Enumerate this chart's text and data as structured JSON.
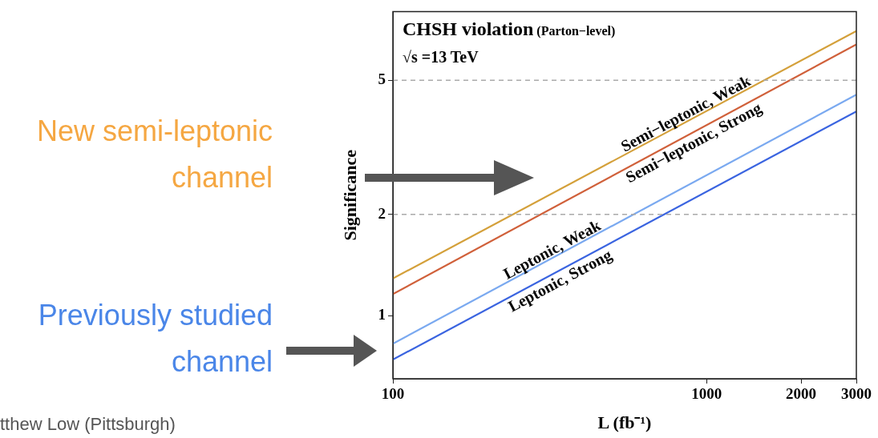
{
  "chart_data": {
    "type": "line",
    "title": "CHSH violation (Parton−level)",
    "subtitle": "√s =13 TeV",
    "xlabel": "L (fb⁻¹)",
    "ylabel": "Significance",
    "x": [
      100,
      3000
    ],
    "log": "xy",
    "xlim": [
      100,
      3000
    ],
    "ylim": [
      0.65,
      8
    ],
    "xticks": [
      100,
      1000,
      2000,
      3000
    ],
    "yticks": [
      1,
      2,
      5
    ],
    "grid": false,
    "legend": false,
    "marker": "none",
    "line_style": "solid",
    "series": [
      {
        "name": "Semi−leptonic, Weak",
        "color": "#d4a03a",
        "values": [
          1.29,
          7.0
        ]
      },
      {
        "name": "Semi−leptonic, Strong",
        "color": "#d0603a",
        "values": [
          1.16,
          6.39
        ]
      },
      {
        "name": "Leptonic, Weak",
        "color": "#7aa9f0",
        "values": [
          0.826,
          4.53
        ]
      },
      {
        "name": "Leptonic, Strong",
        "color": "#3a64e0",
        "values": [
          0.741,
          4.04
        ]
      }
    ],
    "ref_lines": [
      {
        "axis": "y",
        "value": 5,
        "label": null,
        "color": "#aaaaaa",
        "line_style": "dashed"
      },
      {
        "axis": "y",
        "value": 2,
        "label": null,
        "color": "#aaaaaa",
        "line_style": "dashed"
      }
    ],
    "annotations": [
      "New semi-leptonic channel",
      "Previously studied channel",
      "tthew Low (Pittsburgh)"
    ]
  }
}
